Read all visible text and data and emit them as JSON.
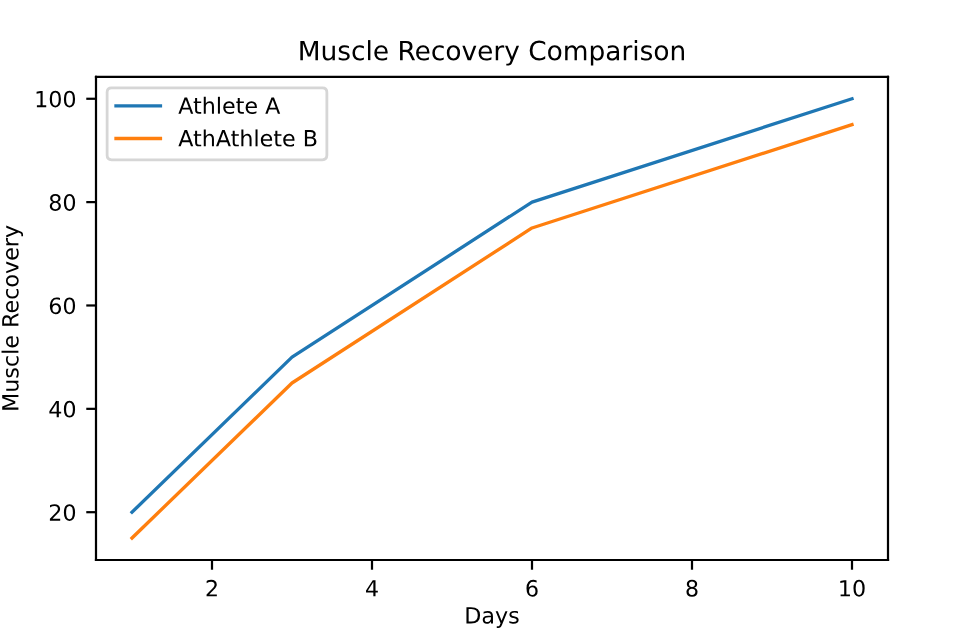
{
  "chart_data": {
    "type": "line",
    "title": "Muscle Recovery Comparison",
    "xlabel": "Days",
    "ylabel": "Muscle Recovery",
    "x": [
      1,
      3,
      6,
      10
    ],
    "series": [
      {
        "name": "Athlete A",
        "color": "#1f77b4",
        "values": [
          20,
          50,
          80,
          100
        ]
      },
      {
        "name": "AthAthlete B",
        "color": "#ff7f0e",
        "values": [
          15,
          45,
          75,
          95
        ]
      }
    ],
    "xlim": [
      0.55,
      10.45
    ],
    "ylim": [
      10.75,
      104.25
    ],
    "xticks": [
      2,
      4,
      6,
      8,
      10
    ],
    "yticks": [
      20,
      40,
      60,
      80,
      100
    ],
    "legend": "top left",
    "grid": false
  }
}
